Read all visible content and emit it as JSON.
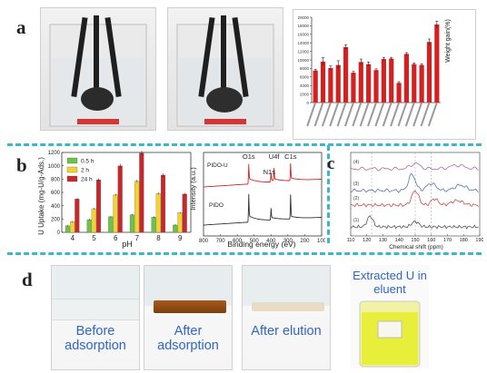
{
  "panels": {
    "a": "a",
    "b": "b",
    "c": "c",
    "d": "d"
  },
  "chart_data": [
    {
      "type": "bar",
      "panel": "a",
      "ylabel": "Weight gain(%)",
      "ylim": [
        0,
        20000
      ],
      "yticks": [
        0,
        2000,
        4000,
        6000,
        8000,
        10000,
        12000,
        14000,
        16000,
        18000,
        20000
      ],
      "values": [
        7500,
        9600,
        8100,
        8800,
        13000,
        7000,
        9500,
        9000,
        7600,
        10200,
        10300,
        4600,
        11400,
        9000,
        8800,
        14200,
        18300
      ],
      "errors": [
        300,
        900,
        500,
        1000,
        500,
        300,
        700,
        500,
        300,
        400,
        300,
        300,
        300,
        300,
        300,
        700,
        800
      ],
      "bar_color": "#d42020"
    },
    {
      "type": "bar",
      "panel": "b",
      "ylabel": "U Uptake (mg-U/g-Ads.)",
      "xlabel": "pH",
      "categories": [
        "4",
        "5",
        "6",
        "7",
        "8",
        "9"
      ],
      "ylim": [
        0,
        1200
      ],
      "yticks": [
        0,
        200,
        400,
        600,
        800,
        1000,
        1200
      ],
      "legend_position": "top-left",
      "series": [
        {
          "name": "0.5 h",
          "color": "#6cc24a",
          "values": [
            100,
            190,
            235,
            265,
            230,
            110
          ]
        },
        {
          "name": "2 h",
          "color": "#f1d331",
          "values": [
            160,
            355,
            565,
            770,
            585,
            295
          ]
        },
        {
          "name": "24 h",
          "color": "#c8282c",
          "values": [
            500,
            790,
            1000,
            1190,
            860,
            575
          ]
        }
      ]
    },
    {
      "type": "line",
      "panel": "b",
      "xlabel": "Binding energy (eV)",
      "ylabel": "Intensity (a.u.)",
      "xlim": [
        800,
        100
      ],
      "xticks": [
        "800",
        "700",
        "600",
        "500",
        "400",
        "300",
        "200",
        "100"
      ],
      "series": [
        {
          "name": "PIDO-U",
          "color": "#d62424"
        },
        {
          "name": "PIDO",
          "color": "#333333"
        }
      ],
      "annotations": [
        "O1s",
        "N1s",
        "U4f",
        "C1s"
      ]
    },
    {
      "type": "line",
      "panel": "c",
      "xlabel": "Chemical shift (ppm)",
      "xlim": [
        110,
        190
      ],
      "xticks": [
        "110",
        "120",
        "130",
        "140",
        "150",
        "160",
        "170",
        "180",
        "190"
      ],
      "series": [
        {
          "name": "(4)",
          "color": "#b06a9a"
        },
        {
          "name": "(3)",
          "color": "#5b6fb8"
        },
        {
          "name": "(2)",
          "color": "#cf4b4b"
        },
        {
          "name": "(1)",
          "color": "#555555"
        }
      ]
    }
  ],
  "photos_d": {
    "before": "Before adsorption",
    "after_adsorption": "After adsorption",
    "after_elution": "After elution",
    "eluent": "Extracted U in eluent"
  }
}
